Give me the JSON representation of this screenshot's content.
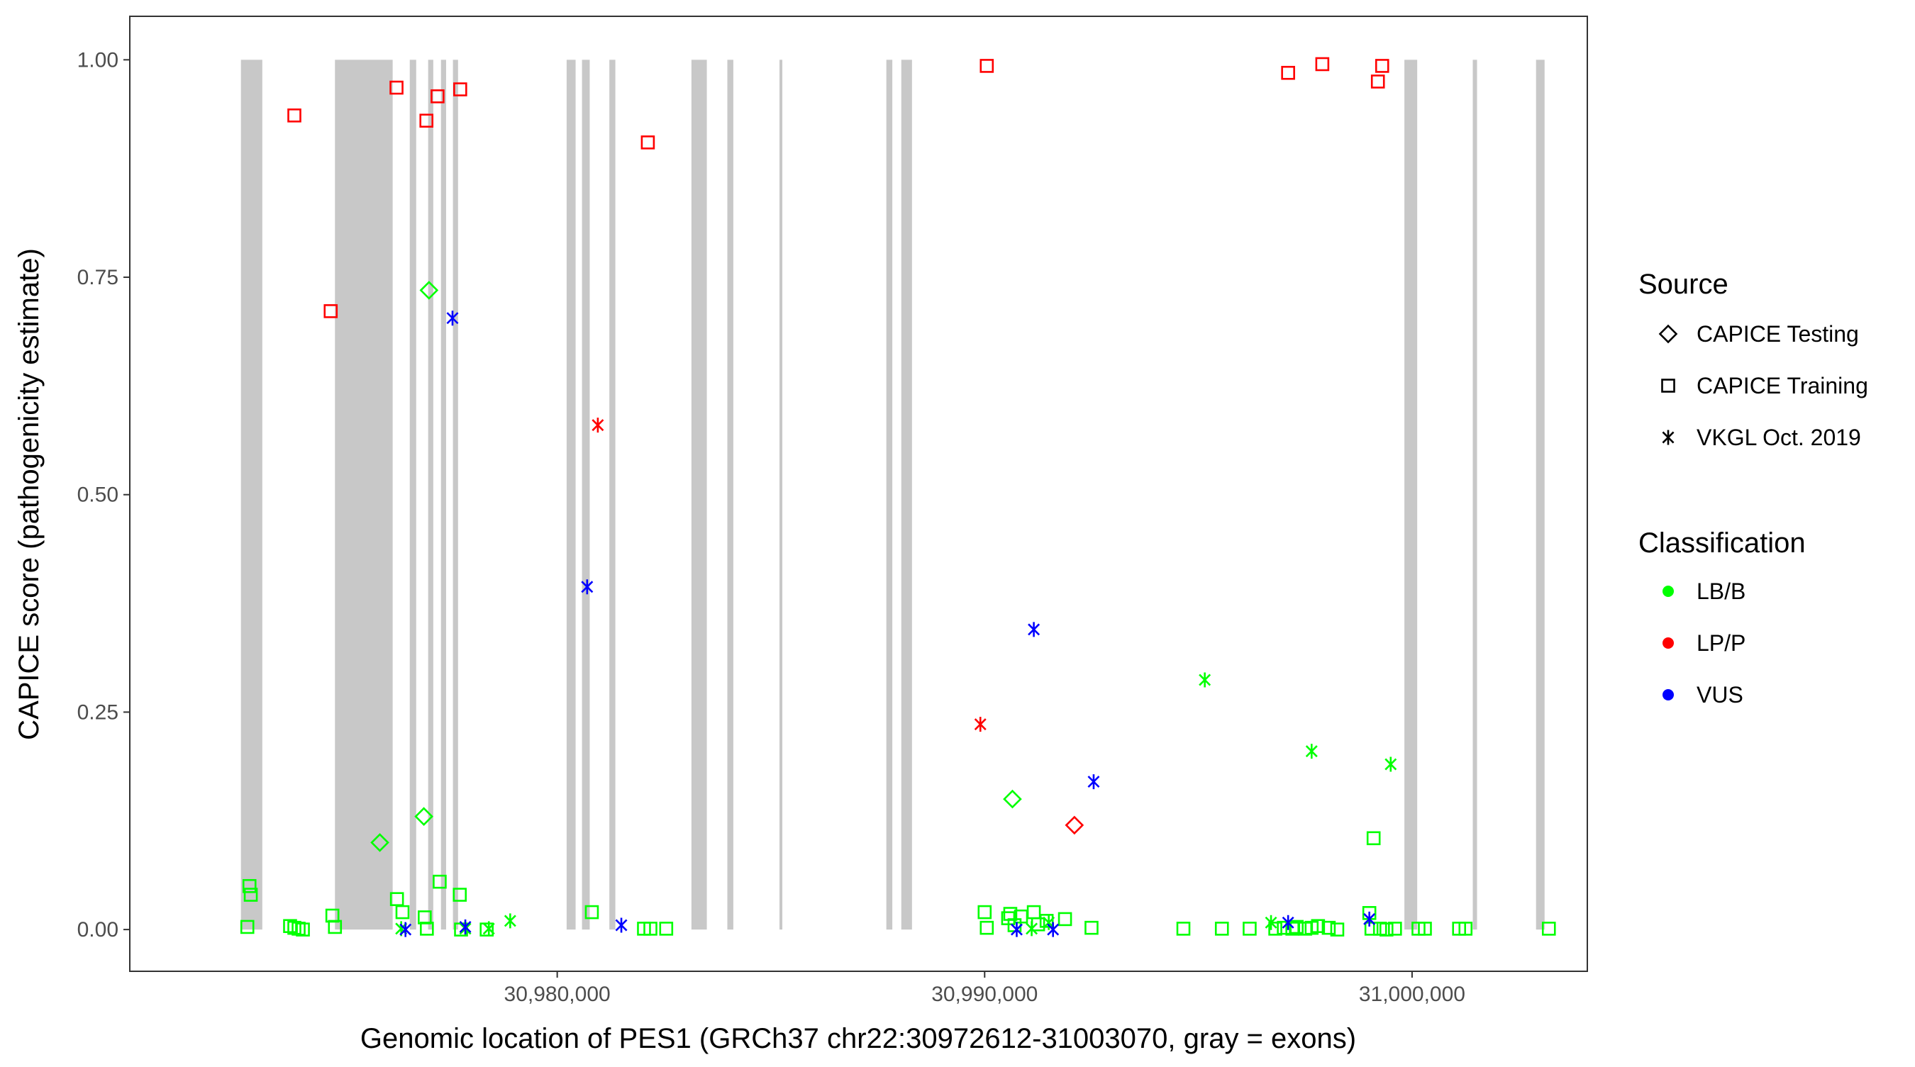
{
  "chart_data": {
    "type": "scatter",
    "xlabel": "Genomic location of PES1 (GRCh37 chr22:30972612-31003070, gray = exons)",
    "ylabel": "CAPICE score (pathogenicity estimate)",
    "xlim": [
      30970000,
      31004100
    ],
    "ylim": [
      -0.048,
      1.05
    ],
    "x_ticks": [
      30980000,
      30990000,
      31000000
    ],
    "x_tick_labels": [
      "30,980,000",
      "30,990,000",
      "31,000,000"
    ],
    "y_ticks": [
      0,
      0.25,
      0.5,
      0.75,
      1.0
    ],
    "y_tick_labels": [
      "0.00",
      "0.25",
      "0.50",
      "0.75",
      "1.00"
    ],
    "grid": false,
    "exons": [
      [
        30972600,
        30973100
      ],
      [
        30974800,
        30976150
      ],
      [
        30976550,
        30976700
      ],
      [
        30976980,
        30977100
      ],
      [
        30977280,
        30977400
      ],
      [
        30977560,
        30977680
      ],
      [
        30980220,
        30980430
      ],
      [
        30980580,
        30980760
      ],
      [
        30981220,
        30981360
      ],
      [
        30983140,
        30983500
      ],
      [
        30983980,
        30984120
      ],
      [
        30985200,
        30985260
      ],
      [
        30987700,
        30987840
      ],
      [
        30988050,
        30988300
      ],
      [
        30999820,
        31000120
      ],
      [
        31001420,
        31001520
      ],
      [
        31002900,
        31003100
      ]
    ],
    "legend_position": "right",
    "legend": {
      "source_title": "Source",
      "source_entries": [
        {
          "label": "CAPICE Testing",
          "shape": "diamond"
        },
        {
          "label": "CAPICE Training",
          "shape": "square"
        },
        {
          "label": "VKGL Oct. 2019",
          "shape": "asterisk"
        }
      ],
      "class_title": "Classification",
      "class_entries": [
        {
          "label": "LB/B",
          "color": "#00ff00"
        },
        {
          "label": "LP/P",
          "color": "#ff0000"
        },
        {
          "label": "VUS",
          "color": "#0000ff"
        }
      ]
    },
    "series": [
      {
        "source": "CAPICE Training",
        "classification": "LP/P",
        "points": [
          [
            30973850,
            0.936
          ],
          [
            30974700,
            0.711
          ],
          [
            30976240,
            0.968
          ],
          [
            30976940,
            0.93
          ],
          [
            30977200,
            0.958
          ],
          [
            30977730,
            0.966
          ],
          [
            30982120,
            0.905
          ],
          [
            30990050,
            0.993
          ],
          [
            30997100,
            0.985
          ],
          [
            30997900,
            0.995
          ],
          [
            30999200,
            0.975
          ],
          [
            30999300,
            0.993
          ]
        ]
      },
      {
        "source": "CAPICE Training",
        "classification": "LB/B",
        "points": [
          [
            30972800,
            0.05
          ],
          [
            30972830,
            0.04
          ],
          [
            30972750,
            0.003
          ],
          [
            30973750,
            0.004
          ],
          [
            30973850,
            0.002
          ],
          [
            30973950,
            0.001
          ],
          [
            30974050,
            0.0
          ],
          [
            30974740,
            0.016
          ],
          [
            30974800,
            0.003
          ],
          [
            30976250,
            0.035
          ],
          [
            30976380,
            0.02
          ],
          [
            30976900,
            0.014
          ],
          [
            30976950,
            0.001
          ],
          [
            30977250,
            0.055
          ],
          [
            30977720,
            0.04
          ],
          [
            30977750,
            0.0
          ],
          [
            30978350,
            0.0
          ],
          [
            30980810,
            0.02
          ],
          [
            30982030,
            0.001
          ],
          [
            30982180,
            0.001
          ],
          [
            30982550,
            0.001
          ],
          [
            30990000,
            0.02
          ],
          [
            30990050,
            0.002
          ],
          [
            30990550,
            0.013
          ],
          [
            30990600,
            0.018
          ],
          [
            30990700,
            0.005
          ],
          [
            30990850,
            0.015
          ],
          [
            30991150,
            0.02
          ],
          [
            30991250,
            0.006
          ],
          [
            30991450,
            0.01
          ],
          [
            30991880,
            0.012
          ],
          [
            30992500,
            0.002
          ],
          [
            30994650,
            0.001
          ],
          [
            30995550,
            0.001
          ],
          [
            30996200,
            0.001
          ],
          [
            30996800,
            0.001
          ],
          [
            30997000,
            0.002
          ],
          [
            30997200,
            0.001
          ],
          [
            30997300,
            0.003
          ],
          [
            30997500,
            0.001
          ],
          [
            30997650,
            0.002
          ],
          [
            30997800,
            0.004
          ],
          [
            30998050,
            0.002
          ],
          [
            30998250,
            0.0
          ],
          [
            30999000,
            0.019
          ],
          [
            30999100,
            0.105
          ],
          [
            30999050,
            0.001
          ],
          [
            30999250,
            0.001
          ],
          [
            30999400,
            0.0
          ],
          [
            30999600,
            0.001
          ],
          [
            31000150,
            0.001
          ],
          [
            31000300,
            0.001
          ],
          [
            31001100,
            0.001
          ],
          [
            31001250,
            0.001
          ],
          [
            31003200,
            0.001
          ]
        ]
      },
      {
        "source": "CAPICE Testing",
        "classification": "LB/B",
        "points": [
          [
            30975850,
            0.1
          ],
          [
            30976880,
            0.13
          ],
          [
            30977000,
            0.735
          ],
          [
            30990650,
            0.15
          ]
        ]
      },
      {
        "source": "CAPICE Testing",
        "classification": "LP/P",
        "points": [
          [
            30992100,
            0.12
          ]
        ]
      },
      {
        "source": "VKGL Oct. 2019",
        "classification": "LB/B",
        "points": [
          [
            30976350,
            0.001
          ],
          [
            30977850,
            0.001
          ],
          [
            30978400,
            0.001
          ],
          [
            30978900,
            0.01
          ],
          [
            30991100,
            0.001
          ],
          [
            30991500,
            0.008
          ],
          [
            30995150,
            0.287
          ],
          [
            30996700,
            0.008
          ],
          [
            30997650,
            0.205
          ],
          [
            30999500,
            0.19
          ]
        ]
      },
      {
        "source": "VKGL Oct. 2019",
        "classification": "LP/P",
        "points": [
          [
            30980950,
            0.58
          ],
          [
            30989900,
            0.236
          ]
        ]
      },
      {
        "source": "VKGL Oct. 2019",
        "classification": "VUS",
        "points": [
          [
            30976450,
            0.0
          ],
          [
            30977550,
            0.703
          ],
          [
            30977850,
            0.003
          ],
          [
            30980700,
            0.394
          ],
          [
            30981500,
            0.005
          ],
          [
            30990750,
            0.0
          ],
          [
            30991150,
            0.345
          ],
          [
            30991600,
            0.0
          ],
          [
            30992550,
            0.17
          ],
          [
            30997100,
            0.008
          ],
          [
            30999000,
            0.012
          ]
        ]
      }
    ]
  }
}
